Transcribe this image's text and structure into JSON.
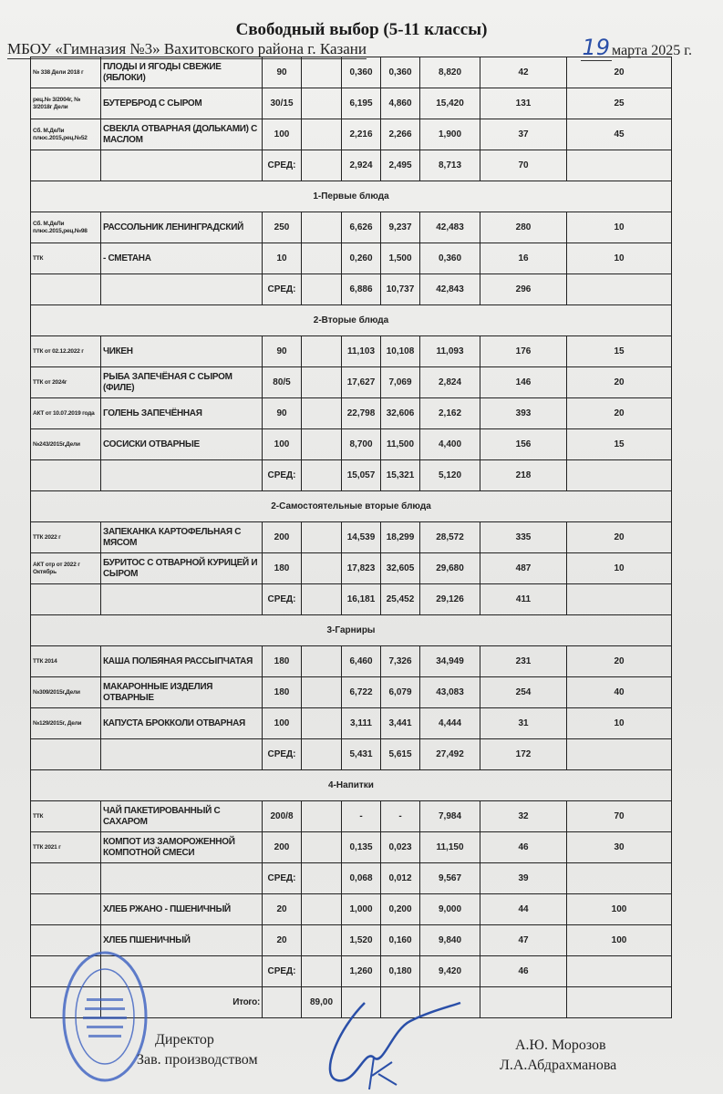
{
  "header": {
    "title": "Свободный выбор (5-11 классы)",
    "school": "МБОУ «Гимназия №3» Вахитовского района г. Казани",
    "date_day": "19",
    "date_rest": "марта 2025 г."
  },
  "rows": [
    {
      "type": "item",
      "ref": "№ 338 Дели 2018 г",
      "name": "ПЛОДЫ И ЯГОДЫ СВЕЖИЕ (ЯБЛОКИ)",
      "portion": "90",
      "price": "",
      "protein": "0,360",
      "fat": "0,360",
      "carbs": "8,820",
      "kcal": "42",
      "recipe": "20"
    },
    {
      "type": "item",
      "ref": "рец.№ 3/2004г, № 3/2018г Дели",
      "name": "БУТЕРБРОД С СЫРОМ",
      "portion": "30/15",
      "price": "",
      "protein": "6,195",
      "fat": "4,860",
      "carbs": "15,420",
      "kcal": "131",
      "recipe": "25"
    },
    {
      "type": "item",
      "ref": "Сб. М.ДеЛи плюс.2015,рец.№52",
      "name": "СВЕКЛА ОТВАРНАЯ (ДОЛЬКАМИ) С МАСЛОМ",
      "portion": "100",
      "price": "",
      "protein": "2,216",
      "fat": "2,266",
      "carbs": "1,900",
      "kcal": "37",
      "recipe": "45"
    },
    {
      "type": "item",
      "ref": "",
      "name": "",
      "portion": "СРЕД:",
      "price": "",
      "protein": "2,924",
      "fat": "2,495",
      "carbs": "8,713",
      "kcal": "70",
      "recipe": ""
    },
    {
      "type": "section",
      "label": "1-Первые блюда"
    },
    {
      "type": "item",
      "ref": "Сб. М.ДеЛи плюс.2015,рец.№98",
      "name": "РАССОЛЬНИК ЛЕНИНГРАДСКИЙ",
      "portion": "250",
      "price": "",
      "protein": "6,626",
      "fat": "9,237",
      "carbs": "42,483",
      "kcal": "280",
      "recipe": "10"
    },
    {
      "type": "item",
      "ref": "ТТК",
      "name": "- СМЕТАНА",
      "portion": "10",
      "price": "",
      "protein": "0,260",
      "fat": "1,500",
      "carbs": "0,360",
      "kcal": "16",
      "recipe": "10"
    },
    {
      "type": "item",
      "ref": "",
      "name": "",
      "portion": "СРЕД:",
      "price": "",
      "protein": "6,886",
      "fat": "10,737",
      "carbs": "42,843",
      "kcal": "296",
      "recipe": ""
    },
    {
      "type": "section",
      "label": "2-Вторые блюда"
    },
    {
      "type": "item",
      "ref": "ТТК от 02.12.2022 г",
      "name": "ЧИКЕН",
      "portion": "90",
      "price": "",
      "protein": "11,103",
      "fat": "10,108",
      "carbs": "11,093",
      "kcal": "176",
      "recipe": "15"
    },
    {
      "type": "item",
      "ref": "ТТК от 2024г",
      "name": "РЫБА ЗАПЕЧЁНАЯ С СЫРОМ (ФИЛЕ)",
      "portion": "80/5",
      "price": "",
      "protein": "17,627",
      "fat": "7,069",
      "carbs": "2,824",
      "kcal": "146",
      "recipe": "20"
    },
    {
      "type": "item",
      "ref": "АКТ от 10.07.2019 года",
      "name": "ГОЛЕНЬ ЗАПЕЧЁННАЯ",
      "portion": "90",
      "price": "",
      "protein": "22,798",
      "fat": "32,606",
      "carbs": "2,162",
      "kcal": "393",
      "recipe": "20"
    },
    {
      "type": "item",
      "ref": "№243/2015г,Дели",
      "name": "СОСИСКИ ОТВАРНЫЕ",
      "portion": "100",
      "price": "",
      "protein": "8,700",
      "fat": "11,500",
      "carbs": "4,400",
      "kcal": "156",
      "recipe": "15"
    },
    {
      "type": "item",
      "ref": "",
      "name": "",
      "portion": "СРЕД:",
      "price": "",
      "protein": "15,057",
      "fat": "15,321",
      "carbs": "5,120",
      "kcal": "218",
      "recipe": ""
    },
    {
      "type": "section",
      "label": "2-Самостоятельные вторые блюда"
    },
    {
      "type": "item",
      "ref": "ТТК 2022 г",
      "name": "ЗАПЕКАНКА КАРТОФЕЛЬНАЯ С МЯСОМ",
      "portion": "200",
      "price": "",
      "protein": "14,539",
      "fat": "18,299",
      "carbs": "28,572",
      "kcal": "335",
      "recipe": "20"
    },
    {
      "type": "item",
      "ref": "АКТ отр от 2022 г Октябрь",
      "name": "БУРИТОС С ОТВАРНОЙ КУРИЦЕЙ И СЫРОМ",
      "portion": "180",
      "price": "",
      "protein": "17,823",
      "fat": "32,605",
      "carbs": "29,680",
      "kcal": "487",
      "recipe": "10"
    },
    {
      "type": "item",
      "ref": "",
      "name": "",
      "portion": "СРЕД:",
      "price": "",
      "protein": "16,181",
      "fat": "25,452",
      "carbs": "29,126",
      "kcal": "411",
      "recipe": ""
    },
    {
      "type": "section",
      "label": "3-Гарниры"
    },
    {
      "type": "item",
      "ref": "ТТК 2014",
      "name": "КАША ПОЛБЯНАЯ РАССЫПЧАТАЯ",
      "portion": "180",
      "price": "",
      "protein": "6,460",
      "fat": "7,326",
      "carbs": "34,949",
      "kcal": "231",
      "recipe": "20"
    },
    {
      "type": "item",
      "ref": "№309/2015г,Дели",
      "name": "МАКАРОННЫЕ ИЗДЕЛИЯ ОТВАРНЫЕ",
      "portion": "180",
      "price": "",
      "protein": "6,722",
      "fat": "6,079",
      "carbs": "43,083",
      "kcal": "254",
      "recipe": "40"
    },
    {
      "type": "item",
      "ref": "№129/2015г, Дели",
      "name": "КАПУСТА БРОККОЛИ ОТВАРНАЯ",
      "portion": "100",
      "price": "",
      "protein": "3,111",
      "fat": "3,441",
      "carbs": "4,444",
      "kcal": "31",
      "recipe": "10"
    },
    {
      "type": "item",
      "ref": "",
      "name": "",
      "portion": "СРЕД:",
      "price": "",
      "protein": "5,431",
      "fat": "5,615",
      "carbs": "27,492",
      "kcal": "172",
      "recipe": ""
    },
    {
      "type": "section",
      "label": "4-Напитки"
    },
    {
      "type": "item",
      "ref": "ТТК",
      "name": "ЧАЙ ПАКЕТИРОВАННЫЙ С САХАРОМ",
      "portion": "200/8",
      "price": "",
      "protein": "-",
      "fat": "-",
      "carbs": "7,984",
      "kcal": "32",
      "recipe": "70"
    },
    {
      "type": "item",
      "ref": "ТТК 2021 г",
      "name": "КОМПОТ ИЗ ЗАМОРОЖЕННОЙ КОМПОТНОЙ СМЕСИ",
      "portion": "200",
      "price": "",
      "protein": "0,135",
      "fat": "0,023",
      "carbs": "11,150",
      "kcal": "46",
      "recipe": "30"
    },
    {
      "type": "item",
      "ref": "",
      "name": "",
      "portion": "СРЕД:",
      "price": "",
      "protein": "0,068",
      "fat": "0,012",
      "carbs": "9,567",
      "kcal": "39",
      "recipe": ""
    },
    {
      "type": "item",
      "ref": "",
      "name": "ХЛЕБ РЖАНО - ПШЕНИЧНЫЙ",
      "portion": "20",
      "price": "",
      "protein": "1,000",
      "fat": "0,200",
      "carbs": "9,000",
      "kcal": "44",
      "recipe": "100"
    },
    {
      "type": "item",
      "ref": "",
      "name": "ХЛЕБ ПШЕНИЧНЫЙ",
      "portion": "20",
      "price": "",
      "protein": "1,520",
      "fat": "0,160",
      "carbs": "9,840",
      "kcal": "47",
      "recipe": "100"
    },
    {
      "type": "item",
      "ref": "",
      "name": "",
      "portion": "СРЕД:",
      "price": "",
      "protein": "1,260",
      "fat": "0,180",
      "carbs": "9,420",
      "kcal": "46",
      "recipe": ""
    },
    {
      "type": "item",
      "ref": "",
      "name": "Итого:",
      "portion": "",
      "price": "89,00",
      "protein": "",
      "fat": "",
      "carbs": "",
      "kcal": "",
      "recipe": ""
    }
  ],
  "footer": {
    "director_label": "Директор",
    "director_name": "А.Ю. Морозов",
    "production_label": "Зав. производством",
    "production_name": "Л.А.Абдрахманова",
    "stamp_text": "Муниципальное бюджетное общеобразовательное учреждение «Гимназия №3» Вахитовского района г.Казани"
  },
  "colors": {
    "ink": "#222222",
    "stamp": "#3a5fc0",
    "handwriting": "#2a4fa8"
  }
}
